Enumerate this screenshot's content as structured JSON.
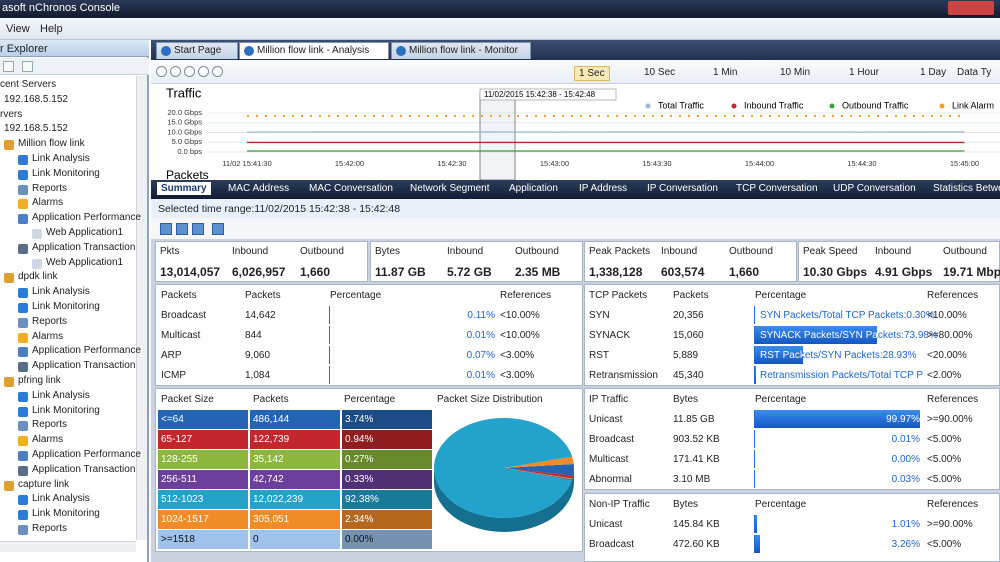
{
  "window": {
    "title": "asoft nChronos Console"
  },
  "menu": [
    "View",
    "Help"
  ],
  "explorer": {
    "title": "r Explorer",
    "recent_servers": {
      "title": "cent Servers",
      "items": [
        "192.168.5.152"
      ]
    },
    "servers": {
      "title": "rvers",
      "items": [
        "192.168.5.152"
      ]
    },
    "links": [
      {
        "name": "Million flow link",
        "items": [
          {
            "label": "Link Analysis"
          },
          {
            "label": "Link Monitoring"
          },
          {
            "label": "Reports"
          },
          {
            "label": "Alarms"
          },
          {
            "label": "Application Performance",
            "children": [
              "Web Application1"
            ]
          },
          {
            "label": "Application Transaction",
            "children": [
              "Web Application1"
            ]
          }
        ]
      },
      {
        "name": "dpdk link",
        "items": [
          {
            "label": "Link Analysis"
          },
          {
            "label": "Link Monitoring"
          },
          {
            "label": "Reports"
          },
          {
            "label": "Alarms"
          },
          {
            "label": "Application Performance"
          },
          {
            "label": "Application Transaction"
          }
        ]
      },
      {
        "name": "pfring link",
        "items": [
          {
            "label": "Link Analysis"
          },
          {
            "label": "Link Monitoring"
          },
          {
            "label": "Reports"
          },
          {
            "label": "Alarms"
          },
          {
            "label": "Application Performance"
          },
          {
            "label": "Application Transaction"
          }
        ]
      },
      {
        "name": "capture link",
        "items": [
          {
            "label": "Link Analysis"
          },
          {
            "label": "Link Monitoring"
          },
          {
            "label": "Reports"
          }
        ]
      }
    ]
  },
  "doc_tabs": [
    "Start Page",
    "Million flow link - Analysis",
    "Million flow link - Monitor"
  ],
  "time_scales": [
    "1 Sec",
    "10 Sec",
    "1 Min",
    "10 Min",
    "1 Hour",
    "1 Day",
    "Data Ty"
  ],
  "chart_data": {
    "type": "line",
    "title": "Traffic",
    "selection": "11/02/2015 15:42:38 - 15:42:48",
    "x": [
      "11/02 15:41:30",
      "15:42:00",
      "15:42:30",
      "15:43:00",
      "15:43:30",
      "15:44:00",
      "15:44:30",
      "15:45:00"
    ],
    "ylim": [
      0,
      20
    ],
    "yticks": [
      {
        "value": 0,
        "label": "0.0 bps"
      },
      {
        "value": 5,
        "label": "5.0 Gbps"
      },
      {
        "value": 10,
        "label": "10.0 Gbps"
      },
      {
        "value": 15,
        "label": "15.0 Gbps"
      },
      {
        "value": 20,
        "label": "20.0 Gbps"
      }
    ],
    "series": [
      {
        "name": "Total Traffic",
        "color": "#9fb8d0",
        "values": [
          10.2,
          10.3,
          10.3,
          10.2,
          10.3,
          10.3,
          10.2,
          10.3
        ]
      },
      {
        "name": "Inbound Traffic",
        "color": "#c8202a",
        "values": [
          4.9,
          4.9,
          4.9,
          4.9,
          4.9,
          4.9,
          4.9,
          4.9
        ]
      },
      {
        "name": "Outbound Traffic",
        "color": "#3aa040",
        "values": [
          0.5,
          0.5,
          0.5,
          0.5,
          0.5,
          0.5,
          0.5,
          0.5
        ]
      },
      {
        "name": "Link Alarm",
        "color": "#f0a020",
        "values": [
          18.5,
          18.5,
          18.5,
          18.5,
          18.5,
          18.5,
          18.5,
          18.5
        ]
      }
    ],
    "next_title": "Packets"
  },
  "view_tabs": [
    "Summary",
    "MAC Address",
    "MAC Conversation",
    "Network Segment",
    "Application",
    "IP Address",
    "IP Conversation",
    "TCP Conversation",
    "UDP Conversation",
    "Statistics Betwe"
  ],
  "selected_range": "Selected time range:11/02/2015  15:42:38 - 15:42:48",
  "stats": [
    {
      "headers": [
        "Pkts",
        "Inbound",
        "Outbound"
      ],
      "values": [
        "13,014,057",
        "6,026,957",
        "1,660"
      ]
    },
    {
      "headers": [
        "Bytes",
        "Inbound",
        "Outbound"
      ],
      "values": [
        "11.87 GB",
        "5.72 GB",
        "2.35 MB"
      ]
    },
    {
      "headers": [
        "Peak Packets",
        "Inbound",
        "Outbound"
      ],
      "values": [
        "1,338,128",
        "603,574",
        "1,660"
      ]
    },
    {
      "headers": [
        "Peak Speed",
        "Inbound",
        "Outbound"
      ],
      "values": [
        "10.30 Gbps",
        "4.91 Gbps",
        "19.71 Mbps"
      ]
    }
  ],
  "packets_table": {
    "headers": [
      "Packets",
      "Packets",
      "Percentage",
      "References"
    ],
    "rows": [
      {
        "name": "Broadcast",
        "count": "14,642",
        "percent": 0.11,
        "percent_label": "0.11%",
        "reference": "<10.00%"
      },
      {
        "name": "Multicast",
        "count": "844",
        "percent": 0.01,
        "percent_label": "0.01%",
        "reference": "<10.00%"
      },
      {
        "name": "ARP",
        "count": "9,060",
        "percent": 0.07,
        "percent_label": "0.07%",
        "reference": "<3.00%"
      },
      {
        "name": "ICMP",
        "count": "1,084",
        "percent": 0.01,
        "percent_label": "0.01%",
        "reference": "<3.00%"
      }
    ]
  },
  "tcp_table": {
    "headers": [
      "TCP Packets",
      "Packets",
      "Percentage",
      "References"
    ],
    "rows": [
      {
        "name": "SYN",
        "count": "20,356",
        "percent": 0.3,
        "percent_label": "SYN Packets/Total TCP Packets:0.30%",
        "reference": "<10.00%"
      },
      {
        "name": "SYNACK",
        "count": "15,060",
        "percent": 73.98,
        "percent_label": "SYNACK Packets/SYN Packets:73.98%",
        "reference": ">=80.00%"
      },
      {
        "name": "RST",
        "count": "5,889",
        "percent": 28.93,
        "percent_label": "RST Packets/SYN Packets:28.93%",
        "reference": "<20.00%"
      },
      {
        "name": "Retransmission",
        "count": "45,340",
        "percent": 0.5,
        "percent_label": "Retransmission Packets/Total TCP P",
        "reference": "<2.00%"
      }
    ]
  },
  "size_table": {
    "headers": [
      "Packet Size",
      "Packets",
      "Percentage"
    ],
    "pie_title": "Packet Size Distribution",
    "rows": [
      {
        "size": "<=64",
        "count": "486,144",
        "percent": 3.74,
        "percent_label": "3.74%",
        "color": "#2465b3"
      },
      {
        "size": "65-127",
        "count": "122,739",
        "percent": 0.94,
        "percent_label": "0.94%",
        "color": "#c3262c"
      },
      {
        "size": "128-255",
        "count": "35,142",
        "percent": 0.27,
        "percent_label": "0.27%",
        "color": "#8cb63c"
      },
      {
        "size": "256-511",
        "count": "42,742",
        "percent": 0.33,
        "percent_label": "0.33%",
        "color": "#6b3f9b"
      },
      {
        "size": "512-1023",
        "count": "12,022,239",
        "percent": 92.38,
        "percent_label": "92.38%",
        "color": "#23a2cb"
      },
      {
        "size": "1024-1517",
        "count": "305,051",
        "percent": 2.34,
        "percent_label": "2.34%",
        "color": "#f18b26"
      },
      {
        "size": ">=1518",
        "count": "0",
        "percent": 0,
        "percent_label": "0.00%",
        "color": "#9ec2ec"
      }
    ]
  },
  "ip_table": {
    "headers": [
      "IP Traffic",
      "Bytes",
      "Percentage",
      "References"
    ],
    "rows": [
      {
        "name": "Unicast",
        "count": "11.85 GB",
        "percent": 99.97,
        "percent_label": "99.97%",
        "reference": ">=90.00%"
      },
      {
        "name": "Broadcast",
        "count": "903.52 KB",
        "percent": 0.01,
        "percent_label": "0.01%",
        "reference": "<5.00%"
      },
      {
        "name": "Multicast",
        "count": "171.41 KB",
        "percent": 0,
        "percent_label": "0.00%",
        "reference": "<5.00%"
      },
      {
        "name": "Abnormal",
        "count": "3.10 MB",
        "percent": 0.03,
        "percent_label": "0.03%",
        "reference": "<5.00%"
      }
    ]
  },
  "non_ip_table": {
    "headers": [
      "Non-IP Traffic",
      "Bytes",
      "Percentage",
      "References"
    ],
    "rows": [
      {
        "name": "Unicast",
        "count": "145.84 KB",
        "percent": 1.01,
        "percent_label": "1.01%",
        "reference": ">=90.00%"
      },
      {
        "name": "Broadcast",
        "count": "472.60 KB",
        "percent": 3.26,
        "percent_label": "3.26%",
        "reference": "<5.00%"
      }
    ]
  }
}
